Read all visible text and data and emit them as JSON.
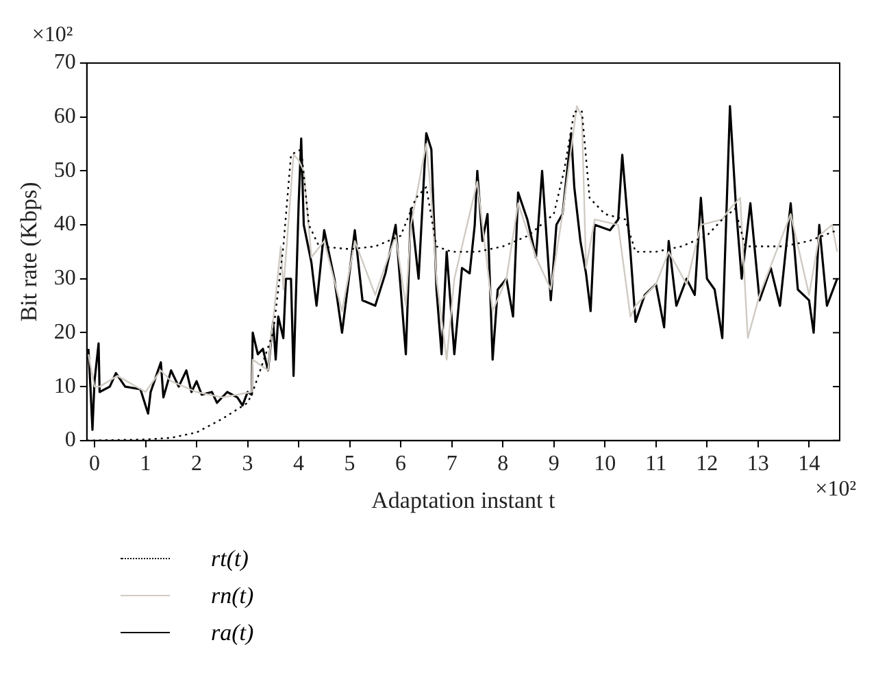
{
  "chart_data": {
    "type": "line",
    "xlabel": "Adaptation instant t",
    "ylabel": "Bit rate (Kbps)",
    "annotations": [
      "×10²",
      "×10²"
    ],
    "xlim": [
      -0.15,
      14.6
    ],
    "xticks": [
      0,
      1,
      2,
      3,
      4,
      5,
      6,
      7,
      8,
      9,
      10,
      11,
      12,
      13,
      14
    ],
    "ylim": [
      0,
      70
    ],
    "yticks": [
      0,
      10,
      20,
      30,
      40,
      50,
      60,
      70
    ],
    "grid": false,
    "legend": "bottom left",
    "marker": "none",
    "series": [
      {
        "name": "rt(t)",
        "color": "#000000",
        "line_style": "dotted",
        "x": [
          -0.15,
          1.0,
          1.5,
          2.0,
          2.5,
          3.0,
          3.1,
          3.5,
          3.7,
          3.85,
          4.05,
          4.2,
          4.4,
          5.0,
          5.5,
          6.0,
          6.3,
          6.5,
          6.7,
          7.0,
          7.5,
          8.0,
          8.5,
          9.0,
          9.2,
          9.4,
          9.55,
          9.7,
          10.0,
          10.4,
          10.6,
          11.0,
          11.5,
          12.0,
          12.3,
          12.55,
          12.75,
          13.5,
          14.0,
          14.55
        ],
        "values": [
          0,
          0.2,
          0.5,
          1.5,
          4,
          7,
          9,
          20,
          36,
          53,
          54,
          40,
          36,
          35.5,
          36,
          38,
          45,
          47,
          36,
          35,
          35,
          36,
          38,
          42,
          50,
          61,
          61,
          45,
          42,
          41,
          35,
          35,
          36,
          38,
          41,
          43,
          36,
          36,
          37,
          39
        ]
      },
      {
        "name": "rn(t)",
        "color": "#d0cbc3",
        "line_style": "solid",
        "x": [
          -0.12,
          0.0,
          0.1,
          0.45,
          1.0,
          1.3,
          1.5,
          2.0,
          2.5,
          3.08,
          3.1,
          3.4,
          3.65,
          3.7,
          3.9,
          4.0,
          4.1,
          4.25,
          4.5,
          4.85,
          5.1,
          5.5,
          5.9,
          6.1,
          6.2,
          6.5,
          6.6,
          6.7,
          6.9,
          7.05,
          7.5,
          7.8,
          8.07,
          8.3,
          8.65,
          8.94,
          9.17,
          9.45,
          9.55,
          9.63,
          9.8,
          10.26,
          10.5,
          10.6,
          11.0,
          11.25,
          11.6,
          11.88,
          12.3,
          12.45,
          12.65,
          12.8,
          13.03,
          13.64,
          14.0,
          14.2,
          14.45,
          14.55
        ],
        "values": [
          16,
          10,
          10,
          12,
          9,
          13,
          11,
          9,
          8,
          9,
          15,
          13,
          36,
          28,
          53,
          52,
          50,
          34,
          37,
          24,
          37,
          27,
          38,
          25,
          40,
          55,
          45,
          30,
          15,
          30,
          48,
          24,
          30,
          44,
          34,
          28,
          42,
          62,
          60,
          32,
          41,
          40,
          23,
          25,
          29,
          35,
          29,
          40,
          41,
          43,
          45,
          19,
          27,
          42,
          27,
          38,
          40,
          35
        ]
      },
      {
        "name": "ra(t)",
        "color": "#000000",
        "line_style": "solid",
        "x": [
          -0.12,
          -0.08,
          -0.04,
          0.0,
          0.08,
          0.1,
          0.3,
          0.42,
          0.6,
          0.9,
          1.05,
          1.1,
          1.3,
          1.35,
          1.5,
          1.65,
          1.8,
          1.9,
          2.0,
          2.1,
          2.3,
          2.4,
          2.6,
          2.8,
          2.9,
          3.0,
          3.08,
          3.1,
          3.2,
          3.3,
          3.4,
          3.5,
          3.55,
          3.6,
          3.7,
          3.75,
          3.85,
          3.9,
          4.0,
          4.05,
          4.1,
          4.25,
          4.35,
          4.5,
          4.7,
          4.85,
          5.1,
          5.25,
          5.5,
          5.7,
          5.9,
          6.1,
          6.2,
          6.35,
          6.5,
          6.6,
          6.7,
          6.8,
          6.9,
          7.05,
          7.2,
          7.35,
          7.45,
          7.5,
          7.6,
          7.7,
          7.8,
          7.9,
          8.07,
          8.2,
          8.3,
          8.48,
          8.65,
          8.77,
          8.94,
          9.05,
          9.17,
          9.34,
          9.4,
          9.52,
          9.63,
          9.72,
          9.8,
          10.1,
          10.26,
          10.34,
          10.5,
          10.6,
          10.78,
          11.0,
          11.16,
          11.25,
          11.4,
          11.6,
          11.76,
          11.88,
          12.0,
          12.15,
          12.3,
          12.45,
          12.57,
          12.68,
          12.85,
          13.03,
          13.25,
          13.43,
          13.64,
          13.78,
          14.0,
          14.09,
          14.2,
          14.35,
          14.55
        ],
        "values": [
          17,
          10,
          2,
          11,
          18,
          9,
          10,
          12.5,
          10,
          9.5,
          5,
          9,
          14.5,
          8,
          13,
          10,
          13,
          9,
          11,
          8.5,
          9,
          7,
          9,
          8,
          6.5,
          9,
          8.5,
          20,
          16,
          17,
          13,
          22,
          15,
          23,
          19,
          30,
          30,
          12,
          44,
          56,
          40,
          33,
          25,
          39,
          30,
          20,
          39,
          26,
          25,
          31,
          40,
          16,
          43,
          30,
          57,
          54,
          28,
          16,
          35,
          16,
          32,
          31,
          40,
          50,
          37,
          42,
          15,
          28,
          30,
          23,
          46,
          41,
          34,
          50,
          26,
          40,
          42,
          57,
          47,
          37,
          31,
          24,
          40,
          39,
          41,
          53,
          35,
          22,
          27,
          29,
          21,
          37,
          25,
          30,
          27,
          45,
          30,
          28,
          19,
          62,
          43,
          30,
          44,
          26,
          32,
          25,
          44,
          28,
          26,
          20,
          40,
          25,
          30
        ]
      }
    ]
  }
}
